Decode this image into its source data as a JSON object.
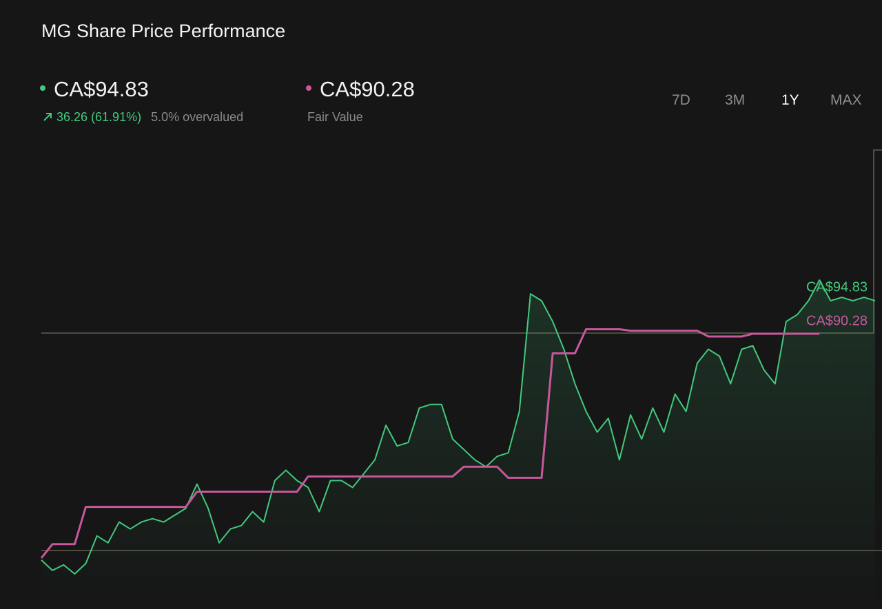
{
  "header": {
    "title": "MG Share Price Performance",
    "price": "CA$94.83",
    "change": "36.26 (61.91%)",
    "valuation": "5.0% overvalued",
    "fair_value": "CA$90.28",
    "fair_value_label": "Fair Value",
    "ranges": [
      "7D",
      "3M",
      "1Y",
      "MAX"
    ],
    "selected_range": 2
  },
  "chart_data": {
    "type": "line",
    "series": [
      {
        "name": "CA$94.83",
        "color": "#43c97e",
        "values": [
          59.05,
          57.62,
          58.38,
          57.14,
          58.57,
          62.39,
          61.43,
          64.3,
          63.34,
          64.3,
          64.77,
          64.3,
          65.25,
          66.2,
          69.54,
          66.2,
          61.43,
          63.34,
          63.82,
          65.73,
          64.3,
          70.02,
          71.45,
          70.02,
          69.07,
          65.73,
          70.02,
          70.02,
          69.07,
          70.97,
          72.88,
          77.65,
          74.79,
          75.27,
          80.04,
          80.52,
          80.52,
          75.75,
          74.31,
          72.88,
          71.93,
          73.36,
          73.84,
          79.56,
          95.78,
          94.83,
          91.97,
          88.15,
          83.38,
          79.56,
          76.7,
          78.61,
          72.88,
          79.09,
          75.75,
          80.04,
          76.7,
          81.95,
          79.56,
          86.24,
          88.15,
          87.2,
          83.38,
          88.15,
          88.63,
          85.29,
          83.38,
          91.97,
          92.92,
          94.83,
          97.69,
          94.83,
          95.31,
          94.83,
          95.31,
          94.83
        ]
      },
      {
        "name": "CA$90.28",
        "color": "#c9579b",
        "values": [
          59.33,
          61.24,
          61.24,
          61.24,
          66.39,
          66.39,
          66.39,
          66.39,
          66.39,
          66.39,
          66.39,
          66.39,
          66.39,
          66.39,
          68.49,
          68.49,
          68.49,
          68.49,
          68.49,
          68.49,
          68.49,
          68.49,
          68.49,
          68.49,
          70.59,
          70.59,
          70.59,
          70.59,
          70.59,
          70.59,
          70.59,
          70.59,
          70.59,
          70.59,
          70.59,
          70.59,
          70.59,
          70.59,
          71.93,
          71.93,
          71.93,
          71.93,
          70.4,
          70.4,
          70.4,
          70.4,
          87.58,
          87.58,
          87.58,
          90.9,
          90.9,
          90.9,
          90.9,
          90.7,
          90.7,
          90.7,
          90.7,
          90.7,
          90.7,
          90.7,
          89.9,
          89.9,
          89.9,
          89.9,
          90.28,
          90.28,
          90.28,
          90.28,
          90.28,
          90.28,
          90.28,
          null,
          null,
          null,
          null,
          null
        ]
      }
    ]
  }
}
